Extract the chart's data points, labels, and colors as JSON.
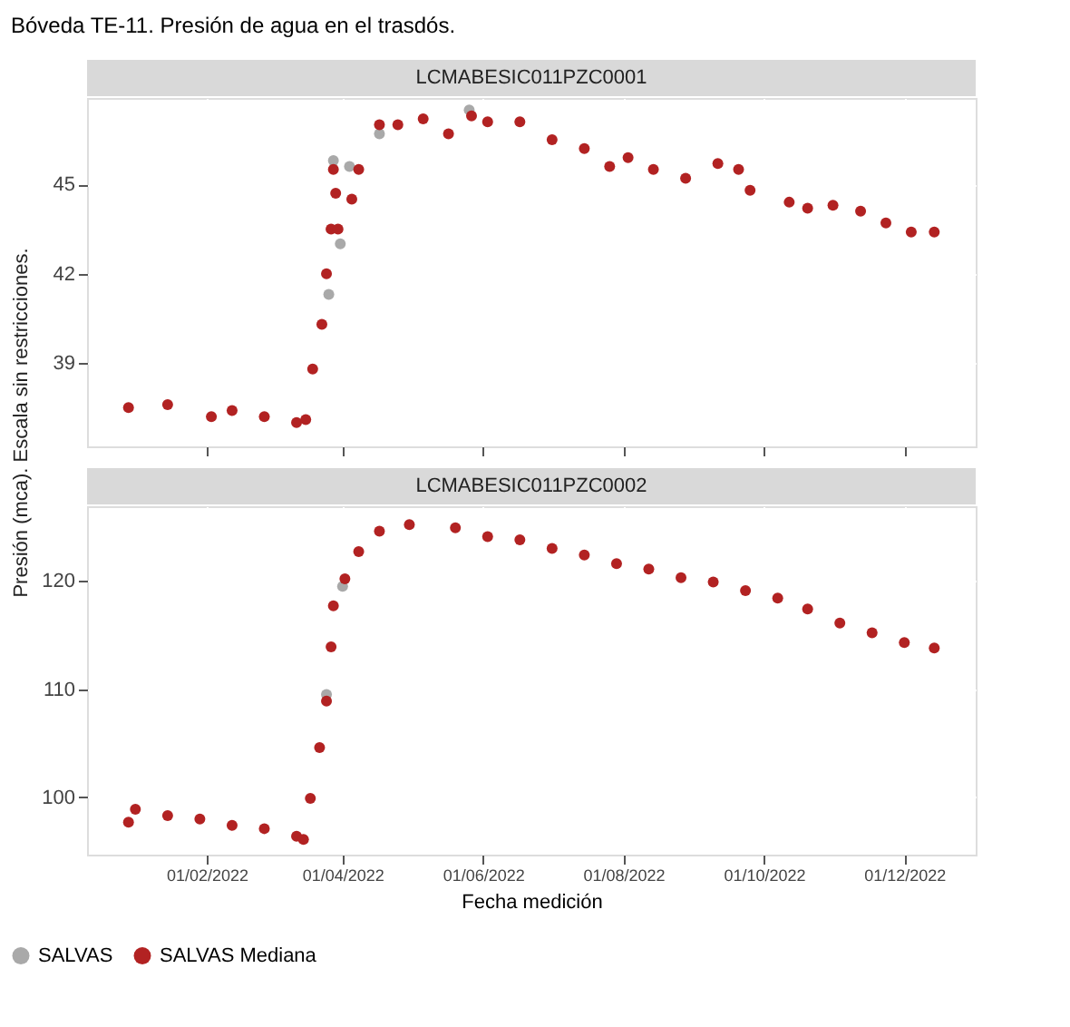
{
  "chart_data": [
    {
      "type": "scatter",
      "title": "Bóveda TE-11. Presión de agua en el trasdós.",
      "subtitle": "LCMABESIC011PZC0001",
      "ylabel": "Presión (mca). Escala sin restricciones.",
      "xlim": [
        "2021-12-11",
        "2023-01-01"
      ],
      "xticks": [
        {
          "value": "2022-02-01",
          "label": null
        },
        {
          "value": "2022-04-01",
          "label": null
        },
        {
          "value": "2022-06-01",
          "label": null
        },
        {
          "value": "2022-08-01",
          "label": null
        },
        {
          "value": "2022-10-01",
          "label": null
        },
        {
          "value": "2022-12-01",
          "label": null
        }
      ],
      "ylim": [
        36.2,
        47.9
      ],
      "yticks": [
        39,
        42,
        45
      ],
      "grid": true,
      "marker": "circle",
      "tick_labels": "y",
      "legend": "bottom",
      "series": [
        {
          "name": "SALVAS",
          "color": "#a9a9a9",
          "x": [
            "2022-03-26",
            "2022-03-28",
            "2022-03-31",
            "2022-04-04",
            "2022-04-17",
            "2022-05-26"
          ],
          "values": [
            41.3,
            45.8,
            43.0,
            45.6,
            46.7,
            47.5
          ]
        },
        {
          "name": "SALVAS Mediana",
          "color": "#b22222",
          "x": [
            "2021-12-29",
            "2022-01-15",
            "2022-02-03",
            "2022-02-12",
            "2022-02-26",
            "2022-03-12",
            "2022-03-16",
            "2022-03-19",
            "2022-03-23",
            "2022-03-25",
            "2022-03-27",
            "2022-03-28",
            "2022-03-29",
            "2022-03-30",
            "2022-04-05",
            "2022-04-08",
            "2022-04-17",
            "2022-04-25",
            "2022-05-06",
            "2022-05-17",
            "2022-05-27",
            "2022-06-03",
            "2022-06-17",
            "2022-07-01",
            "2022-07-15",
            "2022-07-26",
            "2022-08-03",
            "2022-08-14",
            "2022-08-28",
            "2022-09-11",
            "2022-09-20",
            "2022-09-25",
            "2022-10-12",
            "2022-10-20",
            "2022-10-31",
            "2022-11-12",
            "2022-11-23",
            "2022-12-04",
            "2022-12-14"
          ],
          "values": [
            37.5,
            37.6,
            37.2,
            37.4,
            37.2,
            37.0,
            37.1,
            38.8,
            40.3,
            42.0,
            43.5,
            45.5,
            44.7,
            43.5,
            44.5,
            45.5,
            47.0,
            47.0,
            47.2,
            46.7,
            47.3,
            47.1,
            47.1,
            46.5,
            46.2,
            45.6,
            45.9,
            45.5,
            45.2,
            45.7,
            45.5,
            44.8,
            44.4,
            44.2,
            44.3,
            44.1,
            43.7,
            43.4,
            43.4
          ]
        }
      ]
    },
    {
      "type": "scatter",
      "subtitle": "LCMABESIC011PZC0002",
      "xlabel": "Fecha medición",
      "xlim": [
        "2021-12-11",
        "2023-01-01"
      ],
      "xticks": [
        {
          "value": "2022-02-01",
          "label": "01/02/2022"
        },
        {
          "value": "2022-04-01",
          "label": "01/04/2022"
        },
        {
          "value": "2022-06-01",
          "label": "01/06/2022"
        },
        {
          "value": "2022-08-01",
          "label": "01/08/2022"
        },
        {
          "value": "2022-10-01",
          "label": "01/10/2022"
        },
        {
          "value": "2022-12-01",
          "label": "01/12/2022"
        }
      ],
      "ylim": [
        94.7,
        126.9
      ],
      "yticks": [
        100,
        110,
        120
      ],
      "grid": true,
      "marker": "circle",
      "legend": "bottom",
      "series": [
        {
          "name": "SALVAS",
          "color": "#a9a9a9",
          "x": [
            "2022-03-25",
            "2022-04-01"
          ],
          "values": [
            109.5,
            119.5
          ]
        },
        {
          "name": "SALVAS Mediana",
          "color": "#b22222",
          "x": [
            "2021-12-29",
            "2022-01-01",
            "2022-01-15",
            "2022-01-29",
            "2022-02-12",
            "2022-02-26",
            "2022-03-12",
            "2022-03-15",
            "2022-03-18",
            "2022-03-22",
            "2022-03-25",
            "2022-03-27",
            "2022-03-28",
            "2022-04-02",
            "2022-04-08",
            "2022-04-17",
            "2022-04-30",
            "2022-05-20",
            "2022-06-03",
            "2022-06-17",
            "2022-07-01",
            "2022-07-15",
            "2022-07-29",
            "2022-08-12",
            "2022-08-26",
            "2022-09-09",
            "2022-09-23",
            "2022-10-07",
            "2022-10-20",
            "2022-11-03",
            "2022-11-17",
            "2022-12-01",
            "2022-12-14"
          ],
          "values": [
            97.7,
            98.9,
            98.3,
            98.0,
            97.4,
            97.1,
            96.4,
            96.1,
            99.9,
            104.6,
            108.9,
            113.9,
            117.7,
            120.2,
            122.7,
            124.6,
            125.2,
            124.9,
            124.1,
            123.8,
            123.0,
            122.4,
            121.6,
            121.1,
            120.3,
            119.9,
            119.1,
            118.4,
            117.4,
            116.1,
            115.2,
            114.3,
            113.8
          ]
        }
      ]
    }
  ]
}
